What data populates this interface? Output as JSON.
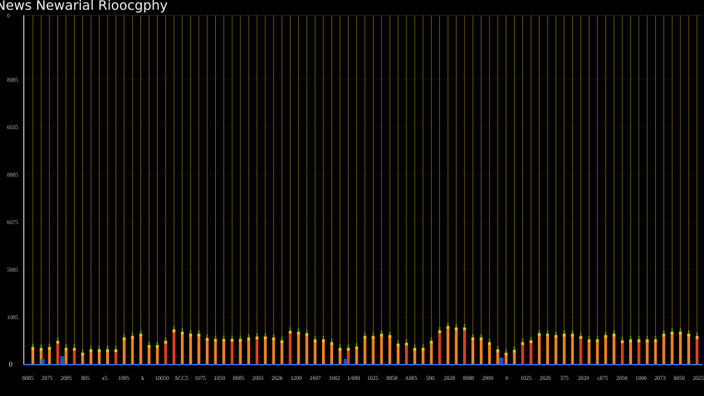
{
  "chart_data": {
    "type": "bar",
    "title": "News Newarial Rioocgphy",
    "xlabel": "",
    "ylabel": "",
    "ylim": [
      0,
      7.35
    ],
    "grid": true,
    "y_tick_values": [
      0,
      1,
      2,
      3,
      4,
      5,
      6
    ],
    "y_tick_labels": [
      "0",
      "1085",
      "5085",
      "6075",
      "8885",
      "6035",
      "8085"
    ],
    "top_label": "0",
    "x_tick_labels": [
      "8085",
      "2075",
      "2095",
      "805",
      "x5",
      "1095",
      "k",
      "10050",
      "ACC5",
      "1075",
      "1050",
      "8085",
      "2003",
      "2026",
      "1209",
      "1607",
      "1682",
      "1/080",
      "1025",
      "8858",
      "A005",
      "500",
      "2028",
      "8088",
      "2000",
      "0",
      "1025",
      "2020",
      "375",
      "2020",
      "c075",
      "2050",
      "1000",
      "2073",
      "8050",
      "2025"
    ],
    "values": [
      0.37,
      0.35,
      0.37,
      0.5,
      0.35,
      0.35,
      0.25,
      0.32,
      0.32,
      0.32,
      0.32,
      0.57,
      0.6,
      0.65,
      0.41,
      0.41,
      0.5,
      0.74,
      0.69,
      0.65,
      0.65,
      0.56,
      0.54,
      0.54,
      0.54,
      0.54,
      0.57,
      0.59,
      0.59,
      0.57,
      0.51,
      0.71,
      0.69,
      0.66,
      0.53,
      0.53,
      0.47,
      0.35,
      0.35,
      0.38,
      0.6,
      0.6,
      0.65,
      0.62,
      0.44,
      0.46,
      0.35,
      0.35,
      0.5,
      0.72,
      0.81,
      0.78,
      0.78,
      0.57,
      0.57,
      0.47,
      0.32,
      0.25,
      0.31,
      0.47,
      0.51,
      0.66,
      0.65,
      0.62,
      0.65,
      0.65,
      0.6,
      0.53,
      0.53,
      0.62,
      0.65,
      0.51,
      0.53,
      0.53,
      0.53,
      0.53,
      0.65,
      0.69,
      0.69,
      0.65,
      0.6
    ],
    "colors": {
      "bar": "#f0821e",
      "bar_alt": "#e0401a",
      "bar_top": "#f2c21a",
      "bar_tip": "#5cae1c",
      "stem": "#7a5d1c",
      "grid": "#3a3a3a",
      "baseline": "#2f6fd8",
      "axis": "#d9c8b0",
      "background": "#000000"
    }
  }
}
